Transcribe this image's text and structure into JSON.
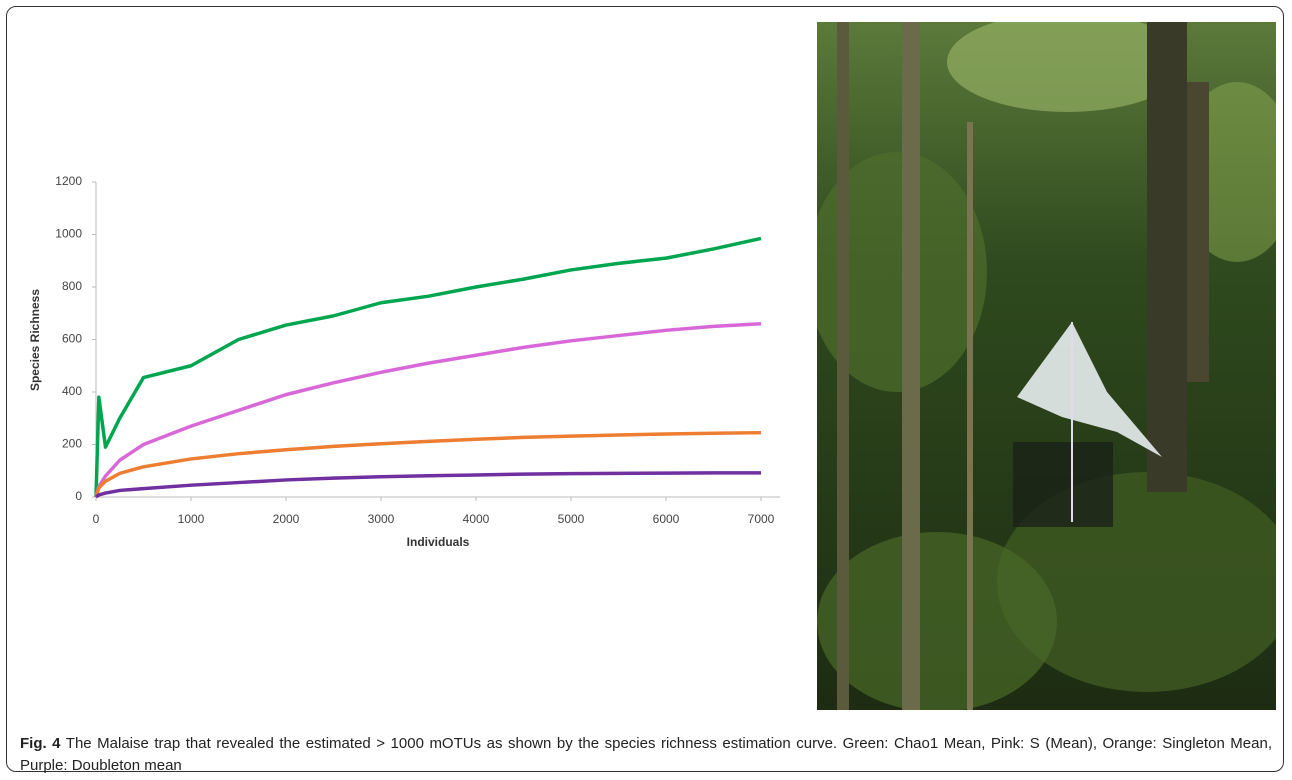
{
  "chart_data": {
    "type": "line",
    "x": [
      0,
      30,
      100,
      250,
      500,
      1000,
      1500,
      2000,
      2500,
      3000,
      3500,
      4000,
      4500,
      5000,
      5500,
      6000,
      6500,
      7000
    ],
    "series": [
      {
        "color": "#00a550",
        "values": [
          0,
          380,
          190,
          300,
          455,
          500,
          600,
          655,
          690,
          740,
          765,
          800,
          830,
          865,
          890,
          910,
          945,
          985
        ]
      },
      {
        "color": "#d868d8",
        "values": [
          0,
          40,
          80,
          140,
          200,
          270,
          330,
          390,
          435,
          475,
          510,
          540,
          570,
          595,
          615,
          635,
          650,
          660
        ]
      },
      {
        "color": "#ed7d31",
        "values": [
          0,
          35,
          60,
          90,
          115,
          145,
          165,
          180,
          193,
          203,
          212,
          220,
          227,
          232,
          236,
          240,
          243,
          245
        ]
      },
      {
        "color": "#7030a0",
        "values": [
          0,
          8,
          15,
          25,
          32,
          45,
          55,
          65,
          72,
          77,
          81,
          84,
          87,
          89,
          90,
          91,
          92,
          92
        ]
      }
    ],
    "xlabel": "Individuals",
    "ylabel": "Species Richness",
    "xlim": [
      0,
      7200
    ],
    "ylim": [
      0,
      1200
    ],
    "xticks": [
      0,
      1000,
      2000,
      3000,
      4000,
      5000,
      6000,
      7000
    ],
    "yticks": [
      0,
      200,
      400,
      600,
      800,
      1000,
      1200
    ],
    "grid": false
  },
  "caption": {
    "label": "Fig. 4",
    "text": "The Malaise trap that revealed the estimated > 1000 mOTUs as shown by the species richness estimation curve. Green: Chao1 Mean, Pink: S (Mean), Orange: Singleton Mean, Purple: Doubleton mean"
  }
}
